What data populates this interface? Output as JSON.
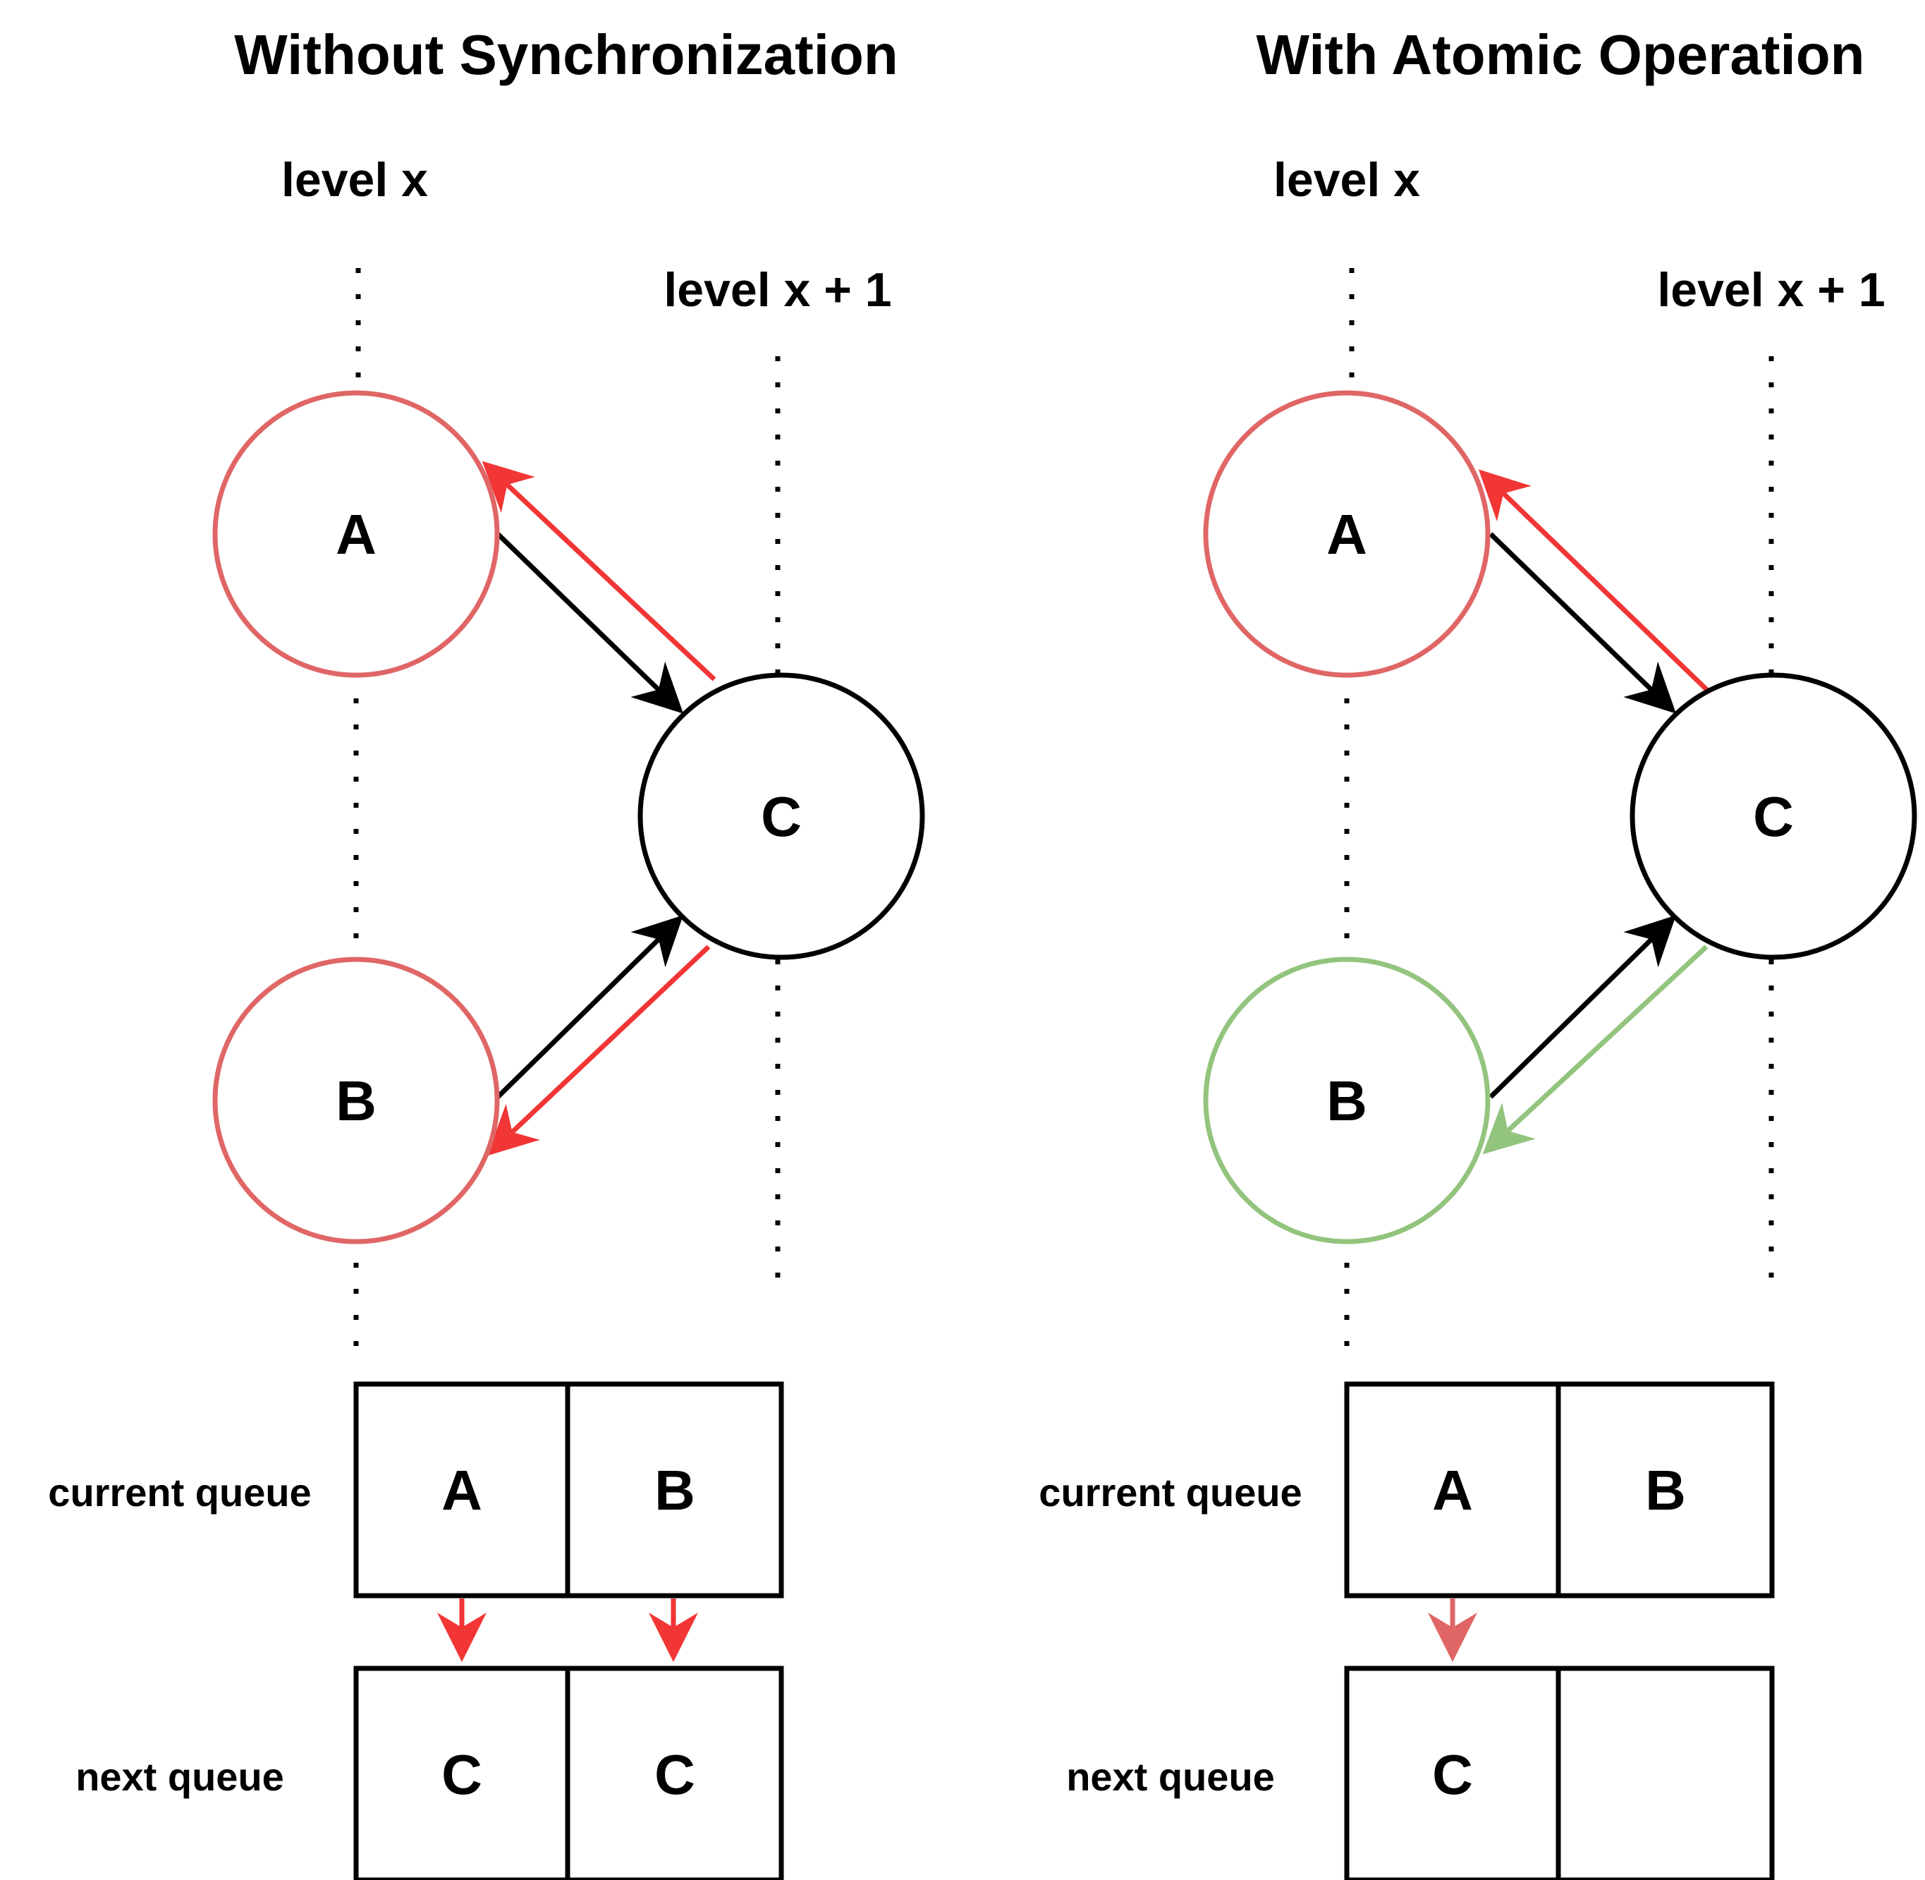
{
  "colors": {
    "visited_red": "#E06666",
    "arrow_red": "#F23535",
    "green": "#93C47D",
    "black": "#000000"
  },
  "panels": [
    {
      "title": "Without Synchronization",
      "level_x": "level x",
      "level_x1": "level x + 1",
      "nodes": {
        "a": "A",
        "b": "B",
        "c": "C"
      },
      "current_queue_label": "current queue",
      "next_queue_label": "next queue",
      "current_queue": [
        "A",
        "B"
      ],
      "next_queue": [
        "C",
        "C"
      ]
    },
    {
      "title": "With Atomic Operation",
      "level_x": "level x",
      "level_x1": "level x + 1",
      "nodes": {
        "a": "A",
        "b": "B",
        "c": "C"
      },
      "current_queue_label": "current queue",
      "next_queue_label": "next queue",
      "current_queue": [
        "A",
        "B"
      ],
      "next_queue": [
        "C",
        ""
      ]
    }
  ]
}
